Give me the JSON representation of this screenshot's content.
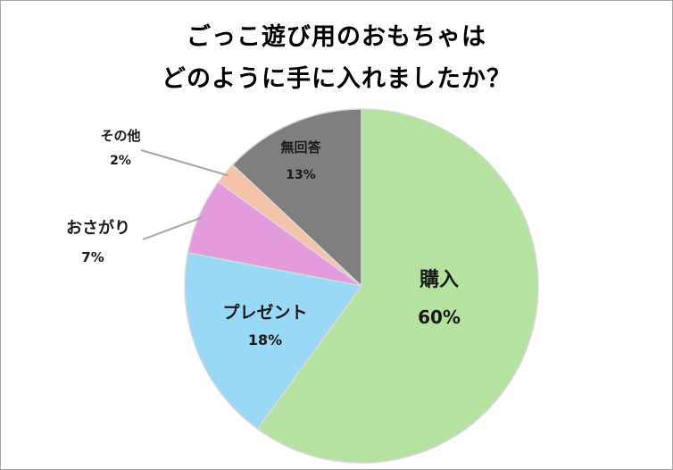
{
  "chart_data": {
    "type": "pie",
    "title_lines": [
      "ごっこ遊び用のおもちゃは",
      "どのように手に入れましたか？"
    ],
    "slices": [
      {
        "label": "購入",
        "value": 60,
        "value_label": "60%",
        "color": "#b5e2a0"
      },
      {
        "label": "プレゼント",
        "value": 18,
        "value_label": "18%",
        "color": "#99d9f5"
      },
      {
        "label": "おさがり",
        "value": 7,
        "value_label": "7%",
        "color": "#e39bdc"
      },
      {
        "label": "その他",
        "value": 2,
        "value_label": "2%",
        "color": "#f5c3a8"
      },
      {
        "label": "無回答",
        "value": 13,
        "value_label": "13%",
        "color": "#7f7f7f"
      }
    ]
  }
}
